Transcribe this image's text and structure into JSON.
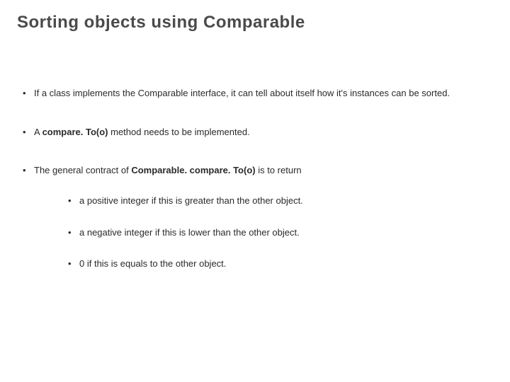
{
  "slide": {
    "title": "Sorting objects using Comparable",
    "title_fontsize": 24,
    "title_color": "#4a4a4a",
    "body_fontsize": 13,
    "body_color": "#2a2a2a",
    "background_color": "#ffffff",
    "bullets": [
      {
        "prefix": "If a class implements the Comparable interface, it can tell about itself how it's instances can be sorted.",
        "bold": "",
        "suffix": ""
      },
      {
        "prefix": "A ",
        "bold": "compare. To(o)",
        "suffix": " method needs to be implemented."
      },
      {
        "prefix": "The general contract of ",
        "bold": "Comparable. compare. To(o)",
        "suffix": " is to return"
      }
    ],
    "sub_bullets": [
      "a positive integer if this is greater than the other object.",
      "a negative integer if this is lower than the other object.",
      "0 if this is equals to the other object."
    ]
  }
}
